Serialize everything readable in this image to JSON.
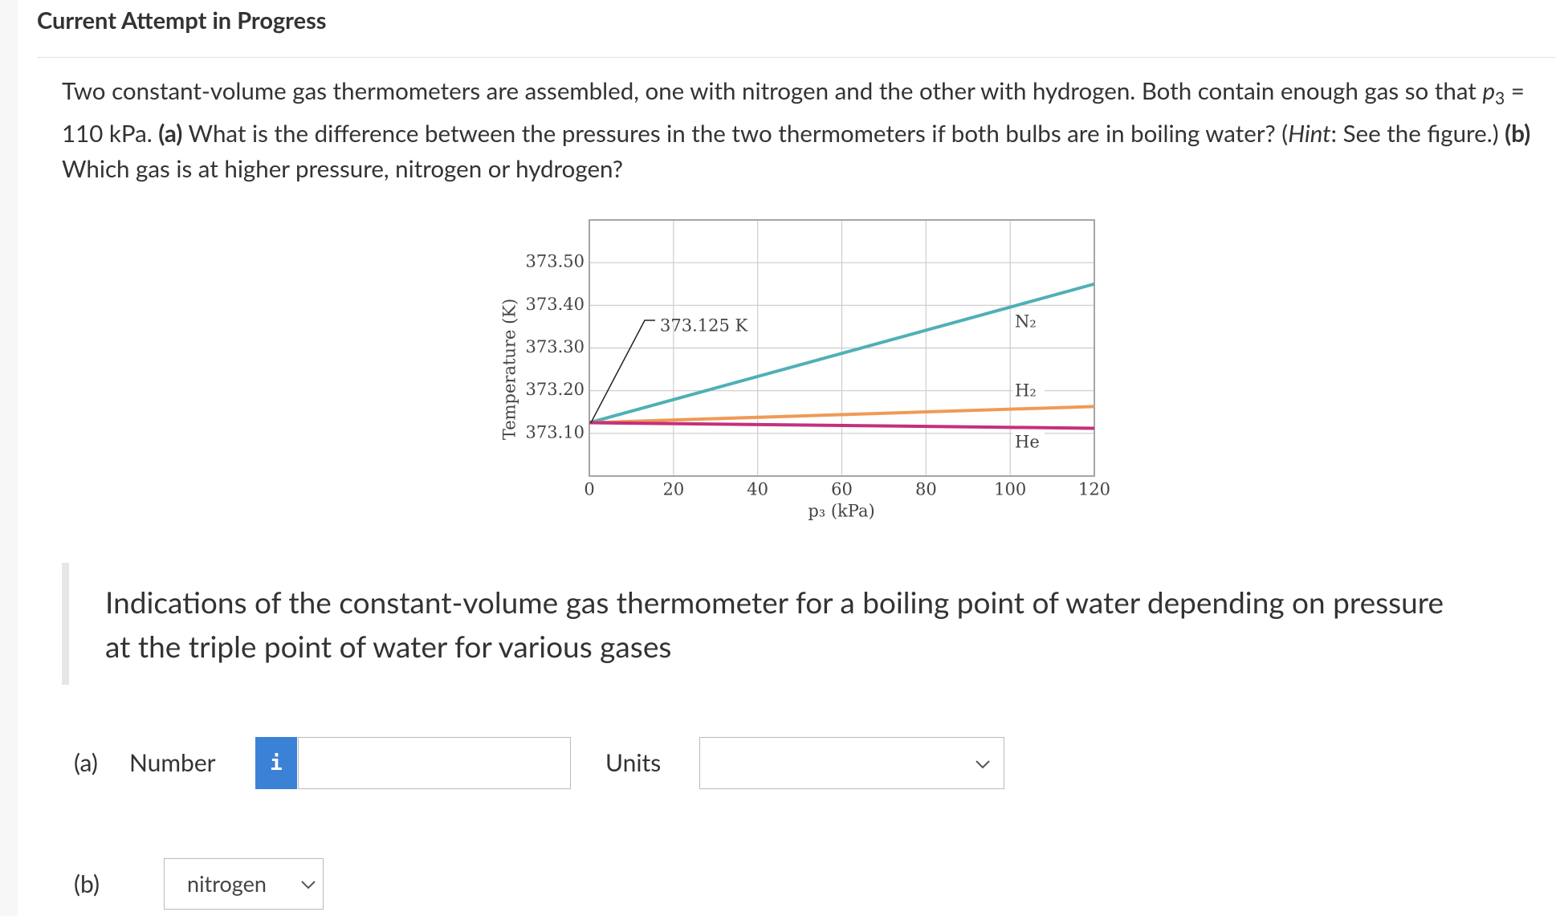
{
  "header": {
    "title": "Current Attempt in Progress"
  },
  "question": {
    "segments": [
      {
        "text": "Two constant-volume gas thermometers are assembled, one with nitrogen and the other with hydrogen. Both contain enough gas so that ",
        "style": "normal"
      },
      {
        "text": "p",
        "style": "italic"
      },
      {
        "text": "3",
        "style": "sub"
      },
      {
        "text": " = 110 kPa. ",
        "style": "normal"
      },
      {
        "text": "(a)",
        "style": "bold"
      },
      {
        "text": " What is the difference between the pressures in the two thermometers if both bulbs are in boiling water? (",
        "style": "normal"
      },
      {
        "text": "Hint",
        "style": "italic"
      },
      {
        "text": ": See the figure.) ",
        "style": "normal"
      },
      {
        "text": "(b)",
        "style": "bold"
      },
      {
        "text": " Which gas is at higher pressure, nitrogen or hydrogen?",
        "style": "normal"
      }
    ]
  },
  "chart_data": {
    "type": "line",
    "xlabel": "p₃ (kPa)",
    "ylabel": "Temperature (K)",
    "x": [
      0,
      120
    ],
    "series": [
      {
        "name": "N₂",
        "color": "#4fb0b6",
        "values": [
          373.125,
          373.45
        ]
      },
      {
        "name": "H₂",
        "color": "#f09a55",
        "values": [
          373.125,
          373.163
        ]
      },
      {
        "name": "He",
        "color": "#c4307c",
        "values": [
          373.125,
          373.112
        ]
      }
    ],
    "xlim": [
      0,
      120
    ],
    "xticks": [
      0,
      20,
      40,
      60,
      80,
      100,
      120
    ],
    "ylim": [
      373.0,
      373.6
    ],
    "yticks": [
      {
        "value": 373.1,
        "label": "373.10"
      },
      {
        "value": 373.2,
        "label": "373.20"
      },
      {
        "value": 373.3,
        "label": "373.30"
      },
      {
        "value": 373.4,
        "label": "373.40"
      },
      {
        "value": 373.5,
        "label": "373.50"
      }
    ],
    "annotations": [
      {
        "text": "373.125 K",
        "value": 373.125
      }
    ],
    "grid": true
  },
  "caption": "Indications of the constant-volume gas thermometer for a boiling point of water depending on pressure at the triple point of water for various gases",
  "form": {
    "a": {
      "label": "(a)",
      "field": "Number",
      "info": "i",
      "units": "Units"
    },
    "b": {
      "label": "(b)",
      "selected": "nitrogen"
    }
  }
}
